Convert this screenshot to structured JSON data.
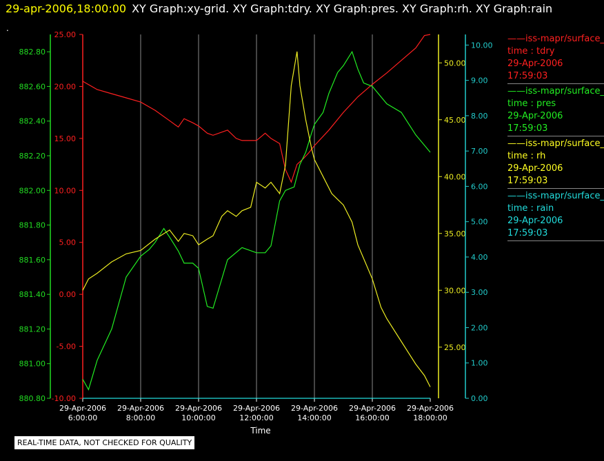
{
  "header": {
    "time": "29-apr-2006,18:00:00",
    "graphs": "XY Graph:xy-grid.  XY Graph:tdry.  XY Graph:pres.  XY Graph:rh.  XY Graph:rain"
  },
  "dot": ".",
  "notice": "REAL-TIME DATA, NOT CHECKED FOR QUALITY",
  "legend": [
    {
      "color": "#ff2020",
      "source": "——iss-mapr/surface_",
      "var": "time : tdry",
      "date": "29-Apr-2006",
      "time": "17:59:03"
    },
    {
      "color": "#22ee22",
      "source": "——iss-mapr/surface_",
      "var": "time : pres",
      "date": "29-Apr-2006",
      "time": "17:59:03"
    },
    {
      "color": "#ffff22",
      "source": "——iss-mapr/surface_",
      "var": "time : rh",
      "date": "29-Apr-2006",
      "time": "17:59:03"
    },
    {
      "color": "#22dddd",
      "source": "——iss-mapr/surface_",
      "var": "time : rain",
      "date": "29-Apr-2006",
      "time": "17:59:03"
    }
  ],
  "chart_data": {
    "type": "line",
    "xlabel": "Time",
    "xlim": [
      6,
      18
    ],
    "x_ticks": [
      {
        "date": "29-Apr-2006",
        "time": "6:00:00"
      },
      {
        "date": "29-Apr-2006",
        "time": "8:00:00"
      },
      {
        "date": "29-Apr-2006",
        "time": "10:00:00"
      },
      {
        "date": "29-Apr-2006",
        "time": "12:00:00"
      },
      {
        "date": "29-Apr-2006",
        "time": "14:00:00"
      },
      {
        "date": "29-Apr-2006",
        "time": "16:00:00"
      },
      {
        "date": "29-Apr-2006",
        "time": "18:00:00"
      }
    ],
    "grid": "vertical",
    "axes": [
      {
        "id": "tdry",
        "color": "#ff2020",
        "ylim": [
          -10,
          25
        ],
        "ticks": [
          "25.00",
          "20.00",
          "15.00",
          "10.00",
          "5.00",
          "0.00",
          "-5.00",
          "-10.00"
        ]
      },
      {
        "id": "pres",
        "color": "#22dd22",
        "ylim": [
          880.8,
          882.9
        ],
        "ticks": [
          "882.80",
          "882.60",
          "882.40",
          "882.20",
          "882.00",
          "881.80",
          "881.60",
          "881.40",
          "881.20",
          "881.00",
          "880.80"
        ]
      },
      {
        "id": "rh",
        "color": "#eeee22",
        "ylim": [
          20.5,
          52.5
        ],
        "ticks": [
          "50.00",
          "45.00",
          "40.00",
          "35.00",
          "30.00",
          "25.00"
        ]
      },
      {
        "id": "rain",
        "color": "#22cccc",
        "ylim": [
          0,
          10.3
        ],
        "ticks": [
          "10.00",
          "9.00",
          "8.00",
          "7.00",
          "6.00",
          "5.00",
          "4.00",
          "3.00",
          "2.00",
          "1.00",
          "0.00"
        ]
      }
    ],
    "series": [
      {
        "axis": "tdry",
        "color": "#ff2020",
        "x": [
          6.0,
          6.5,
          7.0,
          7.5,
          8.0,
          8.5,
          9.0,
          9.3,
          9.5,
          9.8,
          10.0,
          10.3,
          10.5,
          11.0,
          11.3,
          11.5,
          12.0,
          12.3,
          12.5,
          12.8,
          13.0,
          13.2,
          13.4,
          13.6,
          13.8,
          14.0,
          14.5,
          15.0,
          15.5,
          16.0,
          16.5,
          17.0,
          17.5,
          17.8,
          18.0
        ],
        "y": [
          20.5,
          19.7,
          19.3,
          18.9,
          18.5,
          17.7,
          16.7,
          16.1,
          16.9,
          16.5,
          16.2,
          15.5,
          15.3,
          15.8,
          15.0,
          14.8,
          14.8,
          15.5,
          15.0,
          14.5,
          12.0,
          10.8,
          12.5,
          13.0,
          13.6,
          14.3,
          15.8,
          17.5,
          19.0,
          20.2,
          21.3,
          22.5,
          23.7,
          24.9,
          25.0
        ]
      },
      {
        "axis": "pres",
        "color": "#22ee22",
        "x": [
          6.0,
          6.2,
          6.5,
          7.0,
          7.5,
          8.0,
          8.3,
          8.5,
          8.8,
          9.0,
          9.3,
          9.5,
          9.8,
          10.0,
          10.3,
          10.5,
          11.0,
          11.5,
          12.0,
          12.3,
          12.5,
          12.8,
          13.0,
          13.3,
          13.5,
          13.7,
          13.9,
          14.0,
          14.3,
          14.5,
          14.8,
          15.0,
          15.3,
          15.5,
          15.7,
          16.0,
          16.5,
          17.0,
          17.5,
          17.8,
          18.0
        ],
        "y": [
          880.91,
          880.85,
          881.02,
          881.2,
          881.5,
          881.62,
          881.66,
          881.7,
          881.78,
          881.73,
          881.65,
          881.58,
          881.58,
          881.55,
          881.33,
          881.32,
          881.6,
          881.67,
          881.64,
          881.64,
          881.68,
          881.94,
          882.0,
          882.02,
          882.15,
          882.22,
          882.33,
          882.38,
          882.45,
          882.56,
          882.68,
          882.72,
          882.8,
          882.7,
          882.62,
          882.6,
          882.5,
          882.45,
          882.32,
          882.26,
          882.22
        ]
      },
      {
        "axis": "rh",
        "color": "#eeee22",
        "x": [
          6.0,
          6.2,
          6.5,
          7.0,
          7.5,
          8.0,
          8.5,
          9.0,
          9.3,
          9.5,
          9.8,
          10.0,
          10.3,
          10.5,
          10.8,
          11.0,
          11.3,
          11.5,
          11.8,
          12.0,
          12.3,
          12.5,
          12.8,
          13.0,
          13.2,
          13.4,
          13.5,
          13.7,
          13.9,
          14.0,
          14.3,
          14.6,
          14.8,
          15.0,
          15.3,
          15.5,
          16.0,
          16.3,
          16.5,
          17.0,
          17.5,
          17.8,
          18.0
        ],
        "y": [
          30.0,
          31.0,
          31.5,
          32.5,
          33.2,
          33.5,
          34.5,
          35.3,
          34.3,
          35.0,
          34.8,
          34.0,
          34.5,
          34.8,
          36.5,
          37.0,
          36.5,
          37.0,
          37.3,
          39.5,
          39.0,
          39.5,
          38.5,
          41.0,
          48.0,
          51.0,
          48.0,
          45.0,
          42.5,
          41.5,
          40.0,
          38.5,
          38.0,
          37.5,
          36.0,
          34.0,
          31.0,
          28.5,
          27.5,
          25.5,
          23.5,
          22.5,
          21.5
        ]
      },
      {
        "axis": "rain",
        "color": "#22dddd",
        "x": [
          6.0,
          18.0
        ],
        "y": [
          0.0,
          0.0
        ]
      }
    ]
  }
}
